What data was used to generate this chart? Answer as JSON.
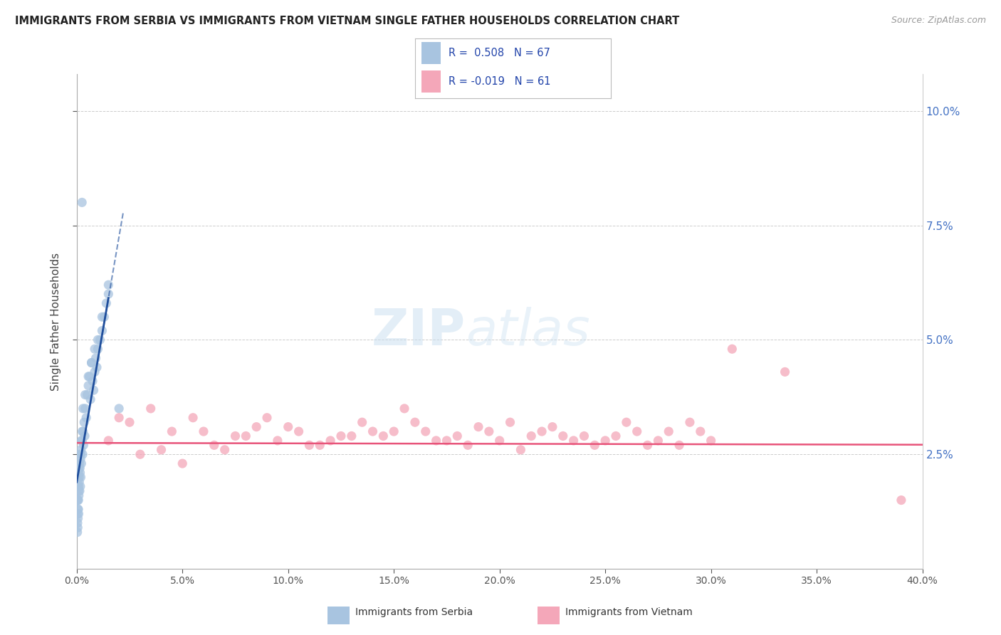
{
  "title": "IMMIGRANTS FROM SERBIA VS IMMIGRANTS FROM VIETNAM SINGLE FATHER HOUSEHOLDS CORRELATION CHART",
  "source": "Source: ZipAtlas.com",
  "ylabel": "Single Father Households",
  "xlim": [
    0.0,
    40.0
  ],
  "ylim": [
    0.0,
    10.8
  ],
  "serbia_R": 0.508,
  "serbia_N": 67,
  "vietnam_R": -0.019,
  "vietnam_N": 61,
  "legend_serbia": "Immigrants from Serbia",
  "legend_vietnam": "Immigrants from Vietnam",
  "serbia_color": "#a8c4e0",
  "serbia_line_color": "#1f4e9c",
  "vietnam_color": "#f4a7b9",
  "vietnam_line_color": "#e8547a",
  "serbia_scatter_x": [
    0.02,
    0.03,
    0.04,
    0.05,
    0.06,
    0.07,
    0.08,
    0.09,
    0.1,
    0.11,
    0.12,
    0.13,
    0.14,
    0.15,
    0.16,
    0.17,
    0.18,
    0.19,
    0.2,
    0.22,
    0.25,
    0.28,
    0.3,
    0.32,
    0.35,
    0.38,
    0.4,
    0.45,
    0.5,
    0.55,
    0.6,
    0.65,
    0.7,
    0.75,
    0.8,
    0.85,
    0.9,
    0.95,
    1.0,
    1.1,
    1.2,
    1.3,
    1.4,
    1.5,
    0.03,
    0.04,
    0.05,
    0.06,
    0.07,
    0.08,
    0.09,
    0.1,
    0.12,
    0.15,
    0.18,
    0.22,
    0.26,
    0.3,
    0.4,
    0.55,
    0.7,
    0.85,
    1.0,
    1.2,
    1.5,
    0.25,
    2.0
  ],
  "serbia_scatter_y": [
    1.5,
    1.8,
    1.2,
    2.0,
    1.5,
    1.3,
    2.1,
    1.8,
    1.6,
    2.2,
    1.9,
    2.3,
    1.7,
    2.5,
    2.1,
    1.8,
    2.4,
    2.0,
    2.6,
    2.3,
    2.8,
    2.5,
    3.0,
    2.7,
    3.2,
    2.9,
    3.5,
    3.3,
    3.8,
    4.0,
    4.2,
    3.7,
    4.5,
    4.1,
    3.9,
    4.3,
    4.6,
    4.4,
    4.8,
    5.0,
    5.2,
    5.5,
    5.8,
    6.0,
    0.8,
    1.0,
    0.9,
    1.1,
    1.3,
    1.5,
    1.2,
    1.7,
    2.0,
    2.2,
    2.5,
    2.8,
    3.0,
    3.5,
    3.8,
    4.2,
    4.5,
    4.8,
    5.0,
    5.5,
    6.2,
    8.0,
    3.5
  ],
  "vietnam_scatter_x": [
    1.5,
    2.5,
    3.5,
    4.5,
    5.5,
    6.5,
    7.5,
    8.5,
    9.5,
    10.5,
    11.5,
    12.5,
    13.5,
    14.5,
    15.5,
    16.5,
    17.5,
    18.5,
    19.5,
    20.5,
    21.5,
    22.5,
    23.5,
    24.5,
    25.5,
    26.5,
    27.5,
    28.5,
    29.5,
    2.0,
    4.0,
    6.0,
    8.0,
    10.0,
    12.0,
    14.0,
    16.0,
    18.0,
    20.0,
    22.0,
    24.0,
    26.0,
    28.0,
    30.0,
    3.0,
    5.0,
    7.0,
    9.0,
    11.0,
    13.0,
    15.0,
    17.0,
    19.0,
    21.0,
    23.0,
    25.0,
    27.0,
    29.0,
    31.0,
    33.5,
    39.0
  ],
  "vietnam_scatter_y": [
    2.8,
    3.2,
    3.5,
    3.0,
    3.3,
    2.7,
    2.9,
    3.1,
    2.8,
    3.0,
    2.7,
    2.9,
    3.2,
    2.9,
    3.5,
    3.0,
    2.8,
    2.7,
    3.0,
    3.2,
    2.9,
    3.1,
    2.8,
    2.7,
    2.9,
    3.0,
    2.8,
    2.7,
    3.0,
    3.3,
    2.6,
    3.0,
    2.9,
    3.1,
    2.8,
    3.0,
    3.2,
    2.9,
    2.8,
    3.0,
    2.9,
    3.2,
    3.0,
    2.8,
    2.5,
    2.3,
    2.6,
    3.3,
    2.7,
    2.9,
    3.0,
    2.8,
    3.1,
    2.6,
    2.9,
    2.8,
    2.7,
    3.2,
    4.8,
    4.3,
    1.5
  ]
}
